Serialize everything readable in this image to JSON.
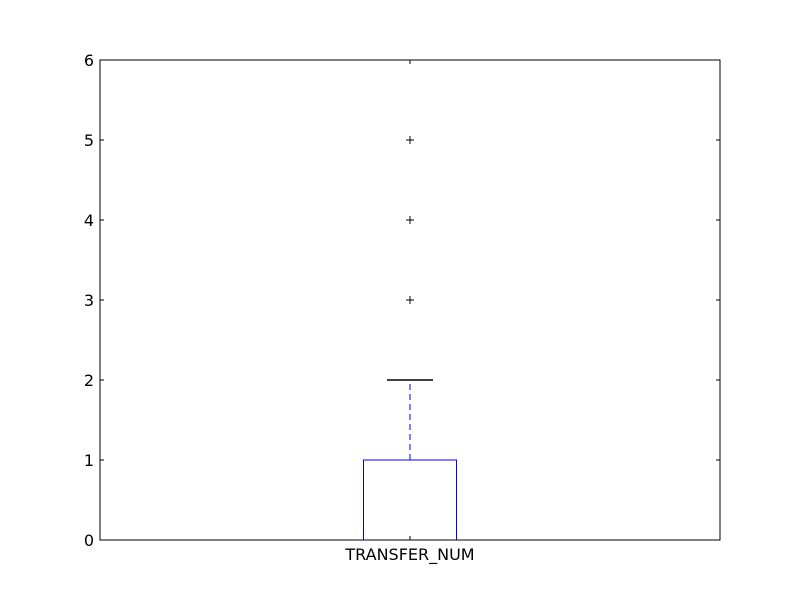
{
  "chart_data": {
    "type": "box",
    "categories": [
      "TRANSFER_NUM"
    ],
    "box": {
      "min_whisker": 0,
      "q1": 0,
      "median": 0,
      "q3": 1,
      "max_whisker": 2,
      "outliers": [
        3,
        4,
        5
      ]
    },
    "ylim": [
      0,
      6
    ],
    "yticks": [
      0,
      1,
      2,
      3,
      4,
      5,
      6
    ],
    "xlabel": "",
    "ylabel": "",
    "title": "",
    "grid": false,
    "colors": {
      "box": "#0000ff",
      "whisker": "#0000ff",
      "cap": "#000000",
      "median": "#ff0000",
      "outlier": "#000000",
      "axes": "#000000"
    }
  }
}
